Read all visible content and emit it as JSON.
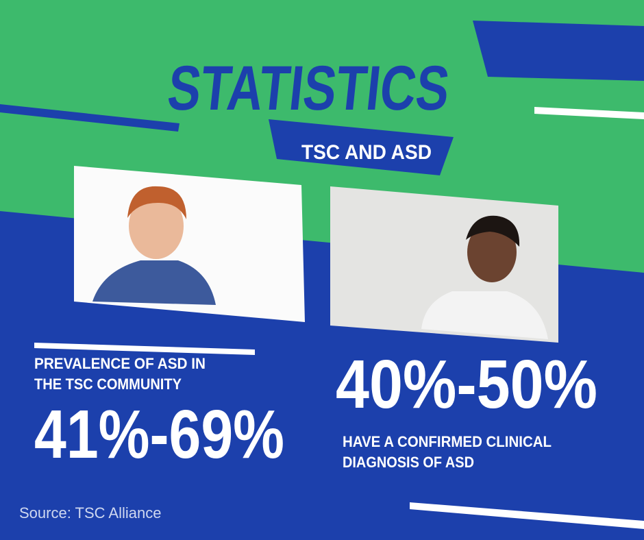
{
  "title": "STATISTICS",
  "subtitle": "TSC AND ASD",
  "left_stat": {
    "label_lines": [
      "PREVALENCE OF ASD IN",
      "THE TSC COMMUNITY"
    ],
    "value": "41%-69%"
  },
  "right_stat": {
    "value": "40%-50%",
    "label_lines": [
      "HAVE A CONFIRMED CLINICAL",
      "DIAGNOSIS OF ASD"
    ]
  },
  "source": "Source: TSC Alliance"
}
